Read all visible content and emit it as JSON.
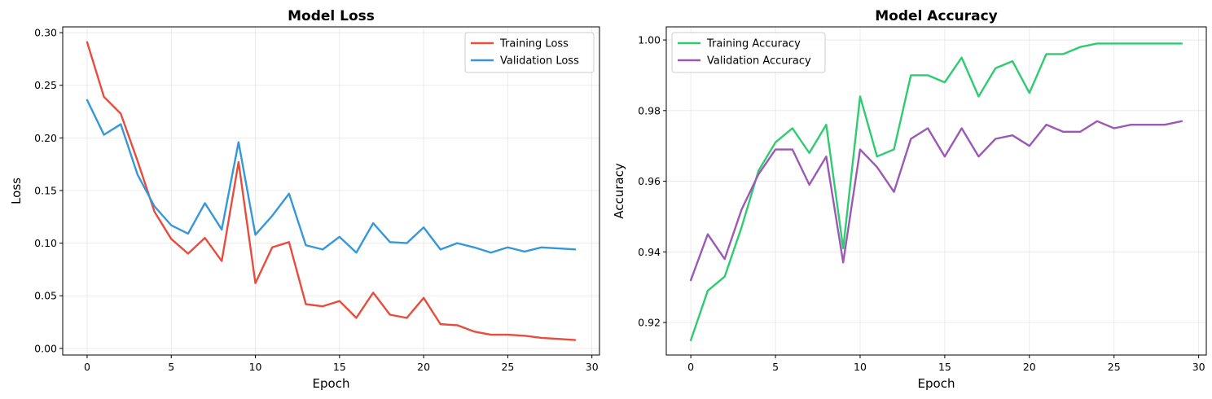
{
  "chart_data": [
    {
      "type": "line",
      "title": "Model Loss",
      "xlabel": "Epoch",
      "ylabel": "Loss",
      "xlim": [
        -1.45,
        30.45
      ],
      "ylim": [
        -0.0063,
        0.3055
      ],
      "xticks": [
        0,
        5,
        10,
        15,
        20,
        25,
        30
      ],
      "xtick_labels": [
        "0",
        "5",
        "10",
        "15",
        "20",
        "25",
        "30"
      ],
      "yticks": [
        0.0,
        0.05,
        0.1,
        0.15,
        0.2,
        0.25,
        0.3
      ],
      "ytick_labels": [
        "0.00",
        "0.05",
        "0.10",
        "0.15",
        "0.20",
        "0.25",
        "0.30"
      ],
      "grid": true,
      "legend_position": "top-right",
      "x": [
        0,
        1,
        2,
        3,
        4,
        5,
        6,
        7,
        8,
        9,
        10,
        11,
        12,
        13,
        14,
        15,
        16,
        17,
        18,
        19,
        20,
        21,
        22,
        23,
        24,
        25,
        26,
        27,
        28,
        29
      ],
      "series": [
        {
          "name": "Training Loss",
          "color": "#e74c3c",
          "values": [
            0.291,
            0.239,
            0.223,
            0.178,
            0.13,
            0.104,
            0.09,
            0.105,
            0.083,
            0.177,
            0.062,
            0.096,
            0.101,
            0.042,
            0.04,
            0.045,
            0.029,
            0.053,
            0.032,
            0.029,
            0.048,
            0.023,
            0.022,
            0.016,
            0.013,
            0.013,
            0.012,
            0.01,
            0.009,
            0.008
          ]
        },
        {
          "name": "Validation Loss",
          "color": "#3498db",
          "values": [
            0.236,
            0.203,
            0.213,
            0.165,
            0.135,
            0.117,
            0.109,
            0.138,
            0.113,
            0.196,
            0.108,
            0.126,
            0.147,
            0.098,
            0.094,
            0.106,
            0.091,
            0.119,
            0.101,
            0.1,
            0.115,
            0.094,
            0.1,
            0.096,
            0.091,
            0.096,
            0.092,
            0.096,
            0.095,
            0.094
          ]
        }
      ]
    },
    {
      "type": "line",
      "title": "Model Accuracy",
      "xlabel": "Epoch",
      "ylabel": "Accuracy",
      "xlim": [
        -1.45,
        30.45
      ],
      "ylim": [
        0.9108,
        1.0037
      ],
      "xticks": [
        0,
        5,
        10,
        15,
        20,
        25,
        30
      ],
      "xtick_labels": [
        "0",
        "5",
        "10",
        "15",
        "20",
        "25",
        "30"
      ],
      "yticks": [
        0.92,
        0.94,
        0.96,
        0.98,
        1.0
      ],
      "ytick_labels": [
        "0.92",
        "0.94",
        "0.96",
        "0.98",
        "1.00"
      ],
      "grid": true,
      "legend_position": "top-left",
      "x": [
        0,
        1,
        2,
        3,
        4,
        5,
        6,
        7,
        8,
        9,
        10,
        11,
        12,
        13,
        14,
        15,
        16,
        17,
        18,
        19,
        20,
        21,
        22,
        23,
        24,
        25,
        26,
        27,
        28,
        29
      ],
      "series": [
        {
          "name": "Training Accuracy",
          "color": "#2ecc71",
          "values": [
            0.915,
            0.929,
            0.933,
            0.947,
            0.963,
            0.971,
            0.975,
            0.968,
            0.976,
            0.941,
            0.984,
            0.967,
            0.969,
            0.99,
            0.99,
            0.988,
            0.995,
            0.984,
            0.992,
            0.994,
            0.985,
            0.996,
            0.996,
            0.998,
            0.999,
            0.999,
            0.999,
            0.999,
            0.999,
            0.999
          ]
        },
        {
          "name": "Validation Accuracy",
          "color": "#9b59b6",
          "values": [
            0.932,
            0.945,
            0.938,
            0.952,
            0.962,
            0.969,
            0.969,
            0.959,
            0.967,
            0.937,
            0.969,
            0.964,
            0.957,
            0.972,
            0.975,
            0.967,
            0.975,
            0.967,
            0.972,
            0.973,
            0.97,
            0.976,
            0.974,
            0.974,
            0.977,
            0.975,
            0.976,
            0.976,
            0.976,
            0.977
          ]
        }
      ]
    }
  ]
}
